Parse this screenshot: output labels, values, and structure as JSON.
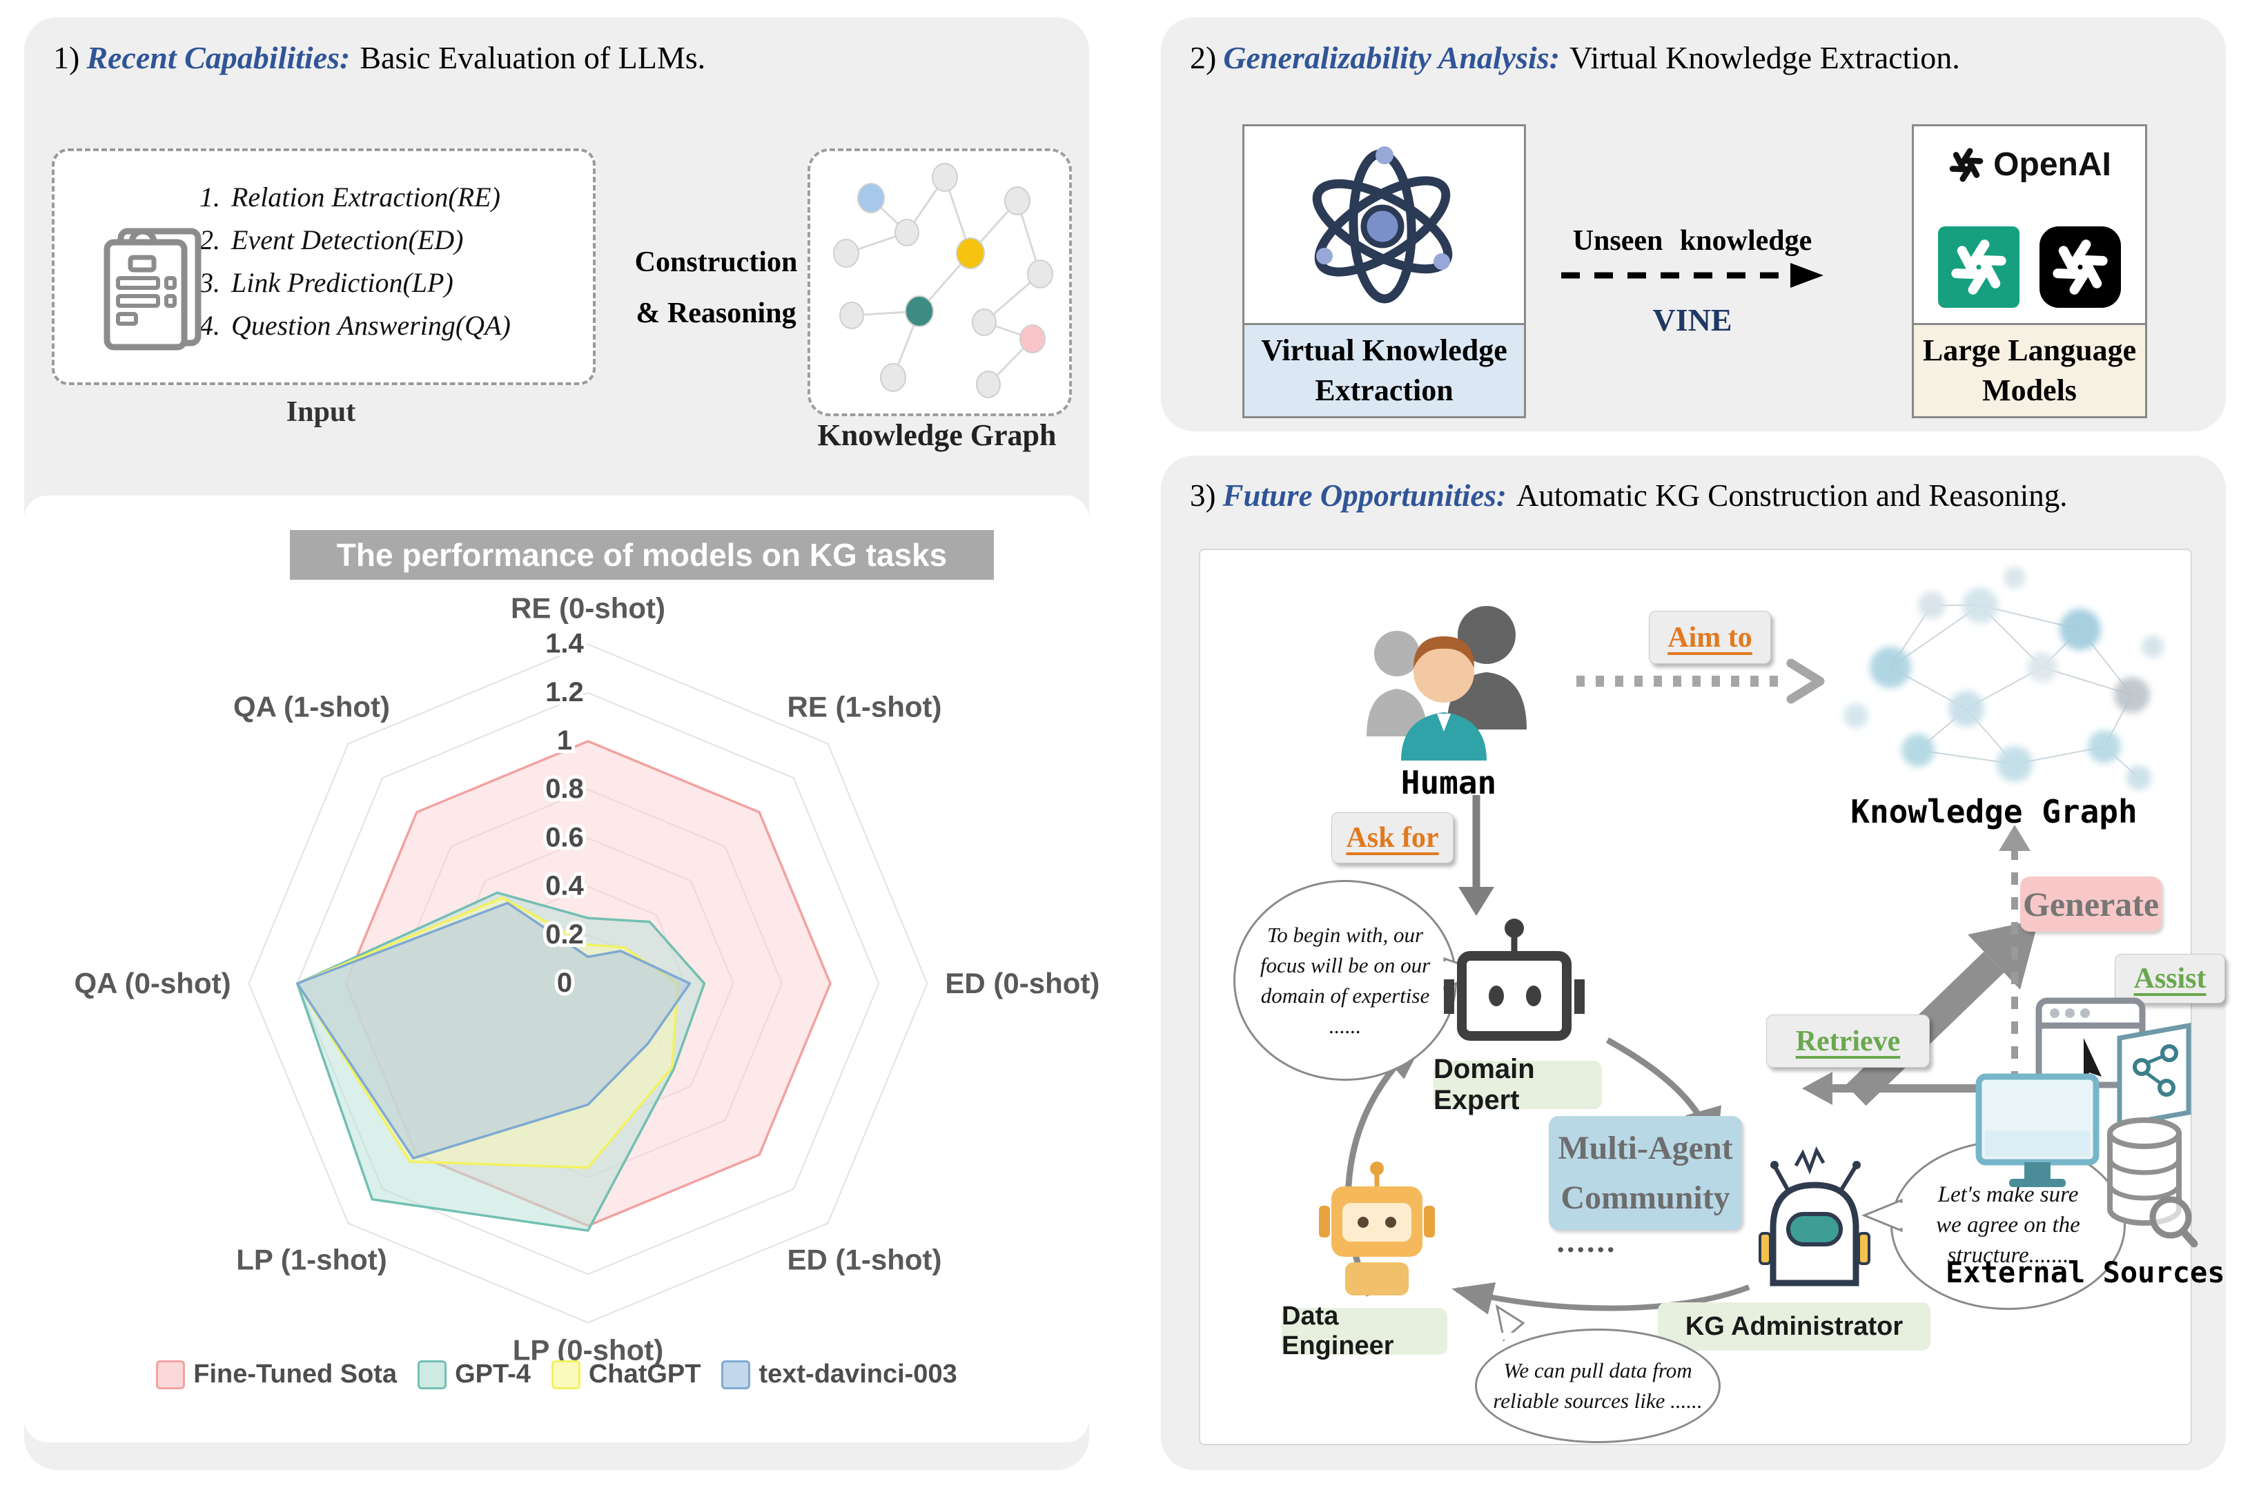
{
  "colors": {
    "accent_blue_heading": "#2F5597",
    "vine_blue": "#1F3864",
    "orange_action": "#E2791F",
    "green_action": "#6AA84F",
    "openai_green": "#16A07F",
    "panel_gray": "#EFEFEF",
    "chart_title_bar_gray": "#A9A9A9",
    "kg_node_blue": "#A6C9EA",
    "kg_node_yellow": "#F6C410",
    "kg_node_teal": "#3C8C84",
    "kg_node_pink": "#F9C4C8"
  },
  "icons": {
    "input": "clipboard-icon",
    "panel1_graph": "knowledge-graph-icon",
    "vke": "atom-icon",
    "llm": "openai-logo-icon",
    "human": "people-group-icon",
    "domain_expert": "robot-icon",
    "kg_admin": "robot-visor-icon",
    "data_engineer": "robot-orange-icon",
    "external": [
      "monitor-icon",
      "browser-icon",
      "map-icon",
      "database-icon",
      "magnifier-icon"
    ]
  },
  "panel1": {
    "number": "1)",
    "heading_em": "Recent Capabilities:",
    "heading_rest": "Basic Evaluation of LLMs.",
    "input_items": [
      "Relation Extraction(RE)",
      "Event Detection(ED)",
      "Link Prediction(LP)",
      "Question Answering(QA)"
    ],
    "input_label": "Input",
    "construction": [
      "Construction",
      "& Reasoning"
    ],
    "kg_label": "Knowledge Graph"
  },
  "chart_data": {
    "type": "radar",
    "title": "The performance of models on KG tasks",
    "axes": [
      "RE (0-shot)",
      "RE (1-shot)",
      "ED (0-shot)",
      "ED (1-shot)",
      "LP (0-shot)",
      "LP (1-shot)",
      "QA (0-shot)",
      "QA (1-shot)"
    ],
    "ticks": [
      0,
      0.2,
      0.4,
      0.6,
      0.8,
      1,
      1.2,
      1.4
    ],
    "rmax": 1.4,
    "grid": true,
    "legend_position": "bottom",
    "series": [
      {
        "name": "Fine-Tuned Sota",
        "values": [
          1,
          1,
          1,
          1,
          1,
          1,
          1,
          1
        ],
        "stroke": "#F2A2A1",
        "fill": "rgba(250,206,206,0.45)",
        "swatch": "#FBD9D9"
      },
      {
        "name": "GPT-4",
        "values": [
          0.27,
          0.36,
          0.48,
          0.5,
          1.02,
          1.26,
          1.2,
          0.53
        ],
        "stroke": "#72BFB3",
        "fill": "rgba(183,224,215,0.5)",
        "swatch": "#CDEAE3"
      },
      {
        "name": "ChatGPT",
        "values": [
          0.16,
          0.21,
          0.37,
          0.49,
          0.76,
          1.04,
          1.2,
          0.5
        ],
        "stroke": "#F2F261",
        "fill": "rgba(250,250,186,0.55)",
        "swatch": "#FAFABC"
      },
      {
        "name": "text-davinci-003",
        "values": [
          0.11,
          0.19,
          0.42,
          0.35,
          0.5,
          1.02,
          1.2,
          0.47
        ],
        "stroke": "#7FA9D2",
        "fill": "rgba(176,201,226,0.55)",
        "swatch": "#C3D7EA"
      }
    ]
  },
  "panel2": {
    "number": "2)",
    "heading_em": "Generalizability Analysis:",
    "heading_rest": "Virtual Knowledge Extraction.",
    "vke_caption": [
      "Virtual Knowledge",
      "Extraction"
    ],
    "arrow_top": "Unseen knowledge",
    "arrow_bottom": "VINE",
    "openai_wordmark": "OpenAI",
    "llm_caption": [
      "Large Language",
      "Models"
    ]
  },
  "panel3": {
    "number": "3)",
    "heading_em": "Future Opportunities:",
    "heading_rest": "Automatic KG Construction and Reasoning.",
    "human_label": "Human",
    "kg_label": "Knowledge Graph",
    "external_label": "External Sources",
    "aim_to": "Aim to",
    "ask_for": "Ask for",
    "generate": "Generate",
    "assist": "Assist",
    "retrieve": "Retrieve",
    "multi_agent": [
      "Multi-Agent",
      "Community"
    ],
    "domain_expert": "Domain Expert",
    "kg_admin": "KG Administrator",
    "data_engineer": "Data Engineer",
    "dots": "......",
    "bubble_domain": [
      "To begin with, our",
      "focus will be on our",
      "domain of expertise",
      "......"
    ],
    "bubble_admin": [
      "Let's make sure",
      "we agree on the",
      "structure......."
    ],
    "bubble_data": [
      "We can pull data from",
      "reliable sources like ......"
    ]
  }
}
